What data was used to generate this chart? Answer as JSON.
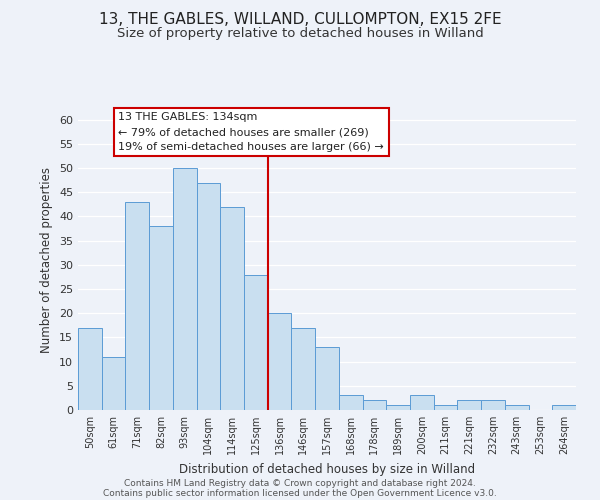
{
  "title": "13, THE GABLES, WILLAND, CULLOMPTON, EX15 2FE",
  "subtitle": "Size of property relative to detached houses in Willand",
  "xlabel": "Distribution of detached houses by size in Willand",
  "ylabel": "Number of detached properties",
  "bar_labels": [
    "50sqm",
    "61sqm",
    "71sqm",
    "82sqm",
    "93sqm",
    "104sqm",
    "114sqm",
    "125sqm",
    "136sqm",
    "146sqm",
    "157sqm",
    "168sqm",
    "178sqm",
    "189sqm",
    "200sqm",
    "211sqm",
    "221sqm",
    "232sqm",
    "243sqm",
    "253sqm",
    "264sqm"
  ],
  "bar_values": [
    17,
    11,
    43,
    38,
    50,
    47,
    42,
    28,
    20,
    17,
    13,
    3,
    2,
    1,
    3,
    1,
    2,
    2,
    1,
    0,
    1
  ],
  "bar_color": "#c9dff0",
  "bar_edge_color": "#5b9bd5",
  "highlight_index": 8,
  "highlight_line_color": "#cc0000",
  "ylim": [
    0,
    62
  ],
  "yticks": [
    0,
    5,
    10,
    15,
    20,
    25,
    30,
    35,
    40,
    45,
    50,
    55,
    60
  ],
  "annotation_title": "13 THE GABLES: 134sqm",
  "annotation_line1": "← 79% of detached houses are smaller (269)",
  "annotation_line2": "19% of semi-detached houses are larger (66) →",
  "annotation_box_color": "#ffffff",
  "annotation_box_edge": "#cc0000",
  "footnote1": "Contains HM Land Registry data © Crown copyright and database right 2024.",
  "footnote2": "Contains public sector information licensed under the Open Government Licence v3.0.",
  "background_color": "#eef2f9",
  "grid_color": "#ffffff",
  "title_fontsize": 11,
  "subtitle_fontsize": 9.5
}
